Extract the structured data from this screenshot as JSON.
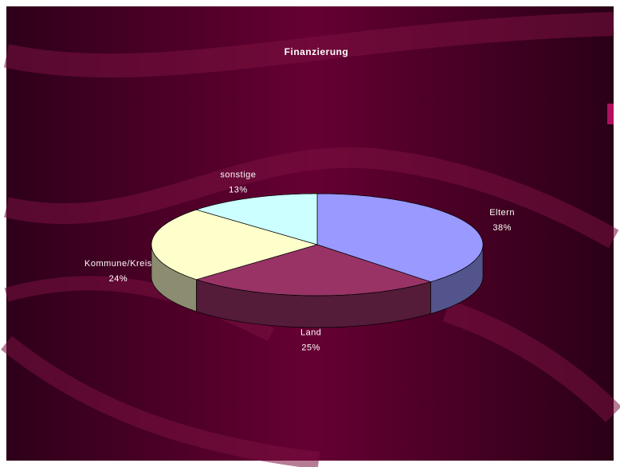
{
  "chart_data": {
    "type": "pie",
    "title": "Finanzierung",
    "categories": [
      "Eltern",
      "Land",
      "Kommune/Kreis",
      "sonstige"
    ],
    "values": [
      38,
      25,
      24,
      13
    ],
    "value_labels": [
      "38%",
      "25%",
      "24%",
      "13%"
    ],
    "colors": [
      "#9999ff",
      "#993366",
      "#ffffcc",
      "#ccffff"
    ]
  }
}
